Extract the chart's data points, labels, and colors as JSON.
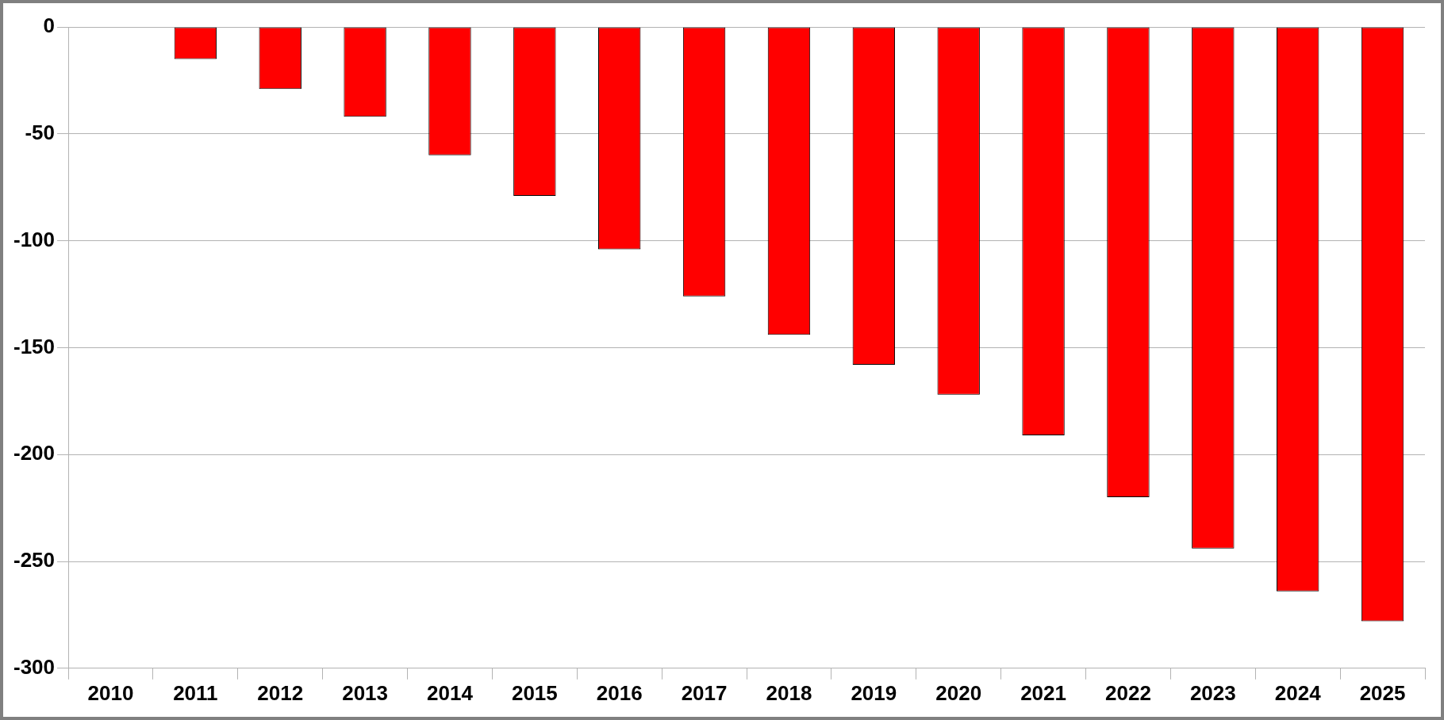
{
  "chart_data": {
    "type": "bar",
    "categories": [
      "2010",
      "2011",
      "2012",
      "2013",
      "2014",
      "2015",
      "2016",
      "2017",
      "2018",
      "2019",
      "2020",
      "2021",
      "2022",
      "2023",
      "2024",
      "2025"
    ],
    "series": [
      {
        "color": "#ff0000",
        "values": [
          0,
          -15,
          -29,
          -42,
          -60,
          -79,
          -104,
          -126,
          -144,
          -158,
          -172,
          -191,
          -220,
          -244,
          -264,
          -278
        ]
      }
    ],
    "ylim": [
      -300,
      0
    ],
    "yticks": [
      -300,
      -250,
      -200,
      -150,
      -100,
      -50,
      0
    ],
    "grid": "y",
    "legend": false
  }
}
